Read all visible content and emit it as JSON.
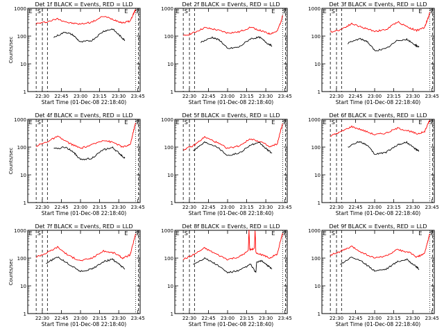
{
  "chart_data": [
    {
      "type": "line",
      "title": "Det 1f BLACK = Events, RED = LLD",
      "ylabel": "Counts/sec",
      "xlabel": "Start Time (01-Dec-08 22:18:40)",
      "x_ticks": [
        "22:30",
        "22:45",
        "23:00",
        "23:15",
        "23:30",
        "23:45"
      ],
      "y_ticks": [
        "1",
        "10",
        "100",
        "1000"
      ],
      "ylim": [
        1,
        1000
      ],
      "yscale": "log",
      "markers": [
        "E",
        "S",
        "E",
        "S"
      ],
      "series": [
        {
          "color": "#ff0000",
          "values": [
            [
              22.42,
              280
            ],
            [
              22.55,
              320
            ],
            [
              22.7,
              420
            ],
            [
              22.85,
              300
            ],
            [
              23.0,
              270
            ],
            [
              23.15,
              320
            ],
            [
              23.3,
              520
            ],
            [
              23.45,
              380
            ],
            [
              23.55,
              300
            ],
            [
              23.65,
              350
            ],
            [
              23.7,
              700
            ],
            [
              23.72,
              900
            ]
          ]
        },
        {
          "color": "#000000",
          "values": [
            [
              22.65,
              90
            ],
            [
              22.8,
              140
            ],
            [
              22.9,
              110
            ],
            [
              23.0,
              60
            ],
            [
              23.15,
              70
            ],
            [
              23.3,
              150
            ],
            [
              23.42,
              180
            ],
            [
              23.52,
              100
            ],
            [
              23.58,
              70
            ]
          ]
        }
      ]
    },
    {
      "type": "line",
      "title": "Det 2f BLACK = Events, RED = LLD",
      "ylabel": "",
      "xlabel": "Start Time (01-Dec-08 22:18:40)",
      "x_ticks": [
        "22:30",
        "22:45",
        "23:00",
        "23:15",
        "23:30",
        "23:45"
      ],
      "y_ticks": [
        "1",
        "10",
        "100",
        "1000"
      ],
      "ylim": [
        1,
        1000
      ],
      "yscale": "log",
      "markers": [
        "E",
        "S",
        "E",
        "S"
      ],
      "series": [
        {
          "color": "#ff0000",
          "values": [
            [
              22.42,
              100
            ],
            [
              22.55,
              130
            ],
            [
              22.7,
              200
            ],
            [
              22.85,
              170
            ],
            [
              23.0,
              130
            ],
            [
              23.15,
              140
            ],
            [
              23.3,
              210
            ],
            [
              23.45,
              150
            ],
            [
              23.55,
              120
            ],
            [
              23.65,
              150
            ],
            [
              23.7,
              350
            ],
            [
              23.72,
              550
            ]
          ]
        },
        {
          "color": "#000000",
          "values": [
            [
              22.65,
              60
            ],
            [
              22.8,
              90
            ],
            [
              22.9,
              70
            ],
            [
              23.0,
              35
            ],
            [
              23.15,
              40
            ],
            [
              23.3,
              80
            ],
            [
              23.42,
              90
            ],
            [
              23.52,
              55
            ],
            [
              23.58,
              45
            ]
          ]
        }
      ]
    },
    {
      "type": "line",
      "title": "Det 3f BLACK = Events, RED = LLD",
      "ylabel": "",
      "xlabel": "Start Time (01-Dec-08 22:18:40)",
      "x_ticks": [
        "22:30",
        "22:45",
        "23:00",
        "23:15",
        "23:30",
        "23:45"
      ],
      "y_ticks": [
        "1",
        "10",
        "100",
        "1000"
      ],
      "ylim": [
        1,
        1000
      ],
      "yscale": "log",
      "markers": [
        "E",
        "S",
        "E",
        "S"
      ],
      "series": [
        {
          "color": "#ff0000",
          "values": [
            [
              22.42,
              140
            ],
            [
              22.55,
              170
            ],
            [
              22.7,
              280
            ],
            [
              22.85,
              200
            ],
            [
              23.0,
              150
            ],
            [
              23.15,
              170
            ],
            [
              23.3,
              330
            ],
            [
              23.45,
              200
            ],
            [
              23.55,
              160
            ],
            [
              23.65,
              200
            ],
            [
              23.7,
              450
            ],
            [
              23.72,
              700
            ]
          ]
        },
        {
          "color": "#000000",
          "values": [
            [
              22.65,
              55
            ],
            [
              22.8,
              80
            ],
            [
              22.9,
              65
            ],
            [
              23.0,
              30
            ],
            [
              23.15,
              35
            ],
            [
              23.3,
              70
            ],
            [
              23.42,
              75
            ],
            [
              23.52,
              50
            ],
            [
              23.58,
              40
            ]
          ]
        }
      ]
    },
    {
      "type": "line",
      "title": "Det 4f BLACK = Events, RED = LLD",
      "ylabel": "Counts/sec",
      "xlabel": "Start Time (01-Dec-08 22:18:40)",
      "x_ticks": [
        "22:30",
        "22:45",
        "23:00",
        "23:15",
        "23:30",
        "23:45"
      ],
      "y_ticks": [
        "1",
        "10",
        "100",
        "1000"
      ],
      "ylim": [
        1,
        1000
      ],
      "yscale": "log",
      "markers": [
        "E",
        "S",
        "E",
        "S"
      ],
      "series": [
        {
          "color": "#ff0000",
          "values": [
            [
              22.42,
              110
            ],
            [
              22.55,
              150
            ],
            [
              22.7,
              240
            ],
            [
              22.85,
              140
            ],
            [
              23.0,
              90
            ],
            [
              23.15,
              120
            ],
            [
              23.3,
              180
            ],
            [
              23.45,
              140
            ],
            [
              23.55,
              100
            ],
            [
              23.65,
              120
            ],
            [
              23.7,
              450
            ],
            [
              23.72,
              750
            ]
          ]
        },
        {
          "color": "#000000",
          "values": [
            [
              22.65,
              85
            ],
            [
              22.8,
              100
            ],
            [
              22.9,
              70
            ],
            [
              23.0,
              35
            ],
            [
              23.15,
              40
            ],
            [
              23.3,
              80
            ],
            [
              23.42,
              95
            ],
            [
              23.52,
              55
            ],
            [
              23.58,
              40
            ]
          ]
        }
      ]
    },
    {
      "type": "line",
      "title": "Det 5f BLACK = Events, RED = LLD",
      "ylabel": "",
      "xlabel": "Start Time (01-Dec-08 22:18:40)",
      "x_ticks": [
        "22:30",
        "22:45",
        "23:00",
        "23:15",
        "23:30",
        "23:45"
      ],
      "y_ticks": [
        "1",
        "10",
        "100",
        "1000"
      ],
      "ylim": [
        1,
        1000
      ],
      "yscale": "log",
      "markers": [
        "E",
        "S",
        "E",
        "S"
      ],
      "series": [
        {
          "color": "#ff0000",
          "values": [
            [
              22.42,
              80
            ],
            [
              22.55,
              110
            ],
            [
              22.7,
              230
            ],
            [
              22.85,
              150
            ],
            [
              23.0,
              90
            ],
            [
              23.15,
              110
            ],
            [
              23.3,
              200
            ],
            [
              23.45,
              150
            ],
            [
              23.55,
              100
            ],
            [
              23.65,
              130
            ],
            [
              23.7,
              450
            ],
            [
              23.72,
              700
            ]
          ]
        },
        {
          "color": "#000000",
          "values": [
            [
              22.55,
              75
            ],
            [
              22.7,
              150
            ],
            [
              22.85,
              110
            ],
            [
              23.0,
              50
            ],
            [
              23.15,
              60
            ],
            [
              23.3,
              120
            ],
            [
              23.42,
              140
            ],
            [
              23.52,
              80
            ],
            [
              23.58,
              60
            ]
          ]
        }
      ]
    },
    {
      "type": "line",
      "title": "Det 6f BLACK = Events, RED = LLD",
      "ylabel": "",
      "xlabel": "Start Time (01-Dec-08 22:18:40)",
      "x_ticks": [
        "22:30",
        "22:45",
        "23:00",
        "23:15",
        "23:30",
        "23:45"
      ],
      "y_ticks": [
        "1",
        "10",
        "100",
        "1000"
      ],
      "ylim": [
        1,
        1000
      ],
      "yscale": "log",
      "markers": [
        "E",
        "S",
        "E",
        "S"
      ],
      "series": [
        {
          "color": "#ff0000",
          "values": [
            [
              22.42,
              250
            ],
            [
              22.55,
              350
            ],
            [
              22.7,
              550
            ],
            [
              22.85,
              400
            ],
            [
              23.0,
              280
            ],
            [
              23.15,
              320
            ],
            [
              23.3,
              480
            ],
            [
              23.45,
              380
            ],
            [
              23.55,
              300
            ],
            [
              23.65,
              350
            ],
            [
              23.7,
              700
            ],
            [
              23.72,
              950
            ]
          ]
        },
        {
          "color": "#000000",
          "values": [
            [
              22.65,
              100
            ],
            [
              22.8,
              160
            ],
            [
              22.9,
              120
            ],
            [
              23.0,
              55
            ],
            [
              23.15,
              65
            ],
            [
              23.3,
              120
            ],
            [
              23.42,
              150
            ],
            [
              23.52,
              90
            ],
            [
              23.58,
              70
            ]
          ]
        }
      ]
    },
    {
      "type": "line",
      "title": "Det 7f BLACK = Events, RED = LLD",
      "ylabel": "Counts/sec",
      "xlabel": "Start Time (01-Dec-08 22:18:40)",
      "x_ticks": [
        "22:30",
        "22:45",
        "23:00",
        "23:15",
        "23:30",
        "23:45"
      ],
      "y_ticks": [
        "1",
        "10",
        "100",
        "1000"
      ],
      "ylim": [
        1,
        1000
      ],
      "yscale": "log",
      "markers": [
        "E",
        "S",
        "E",
        "S"
      ],
      "series": [
        {
          "color": "#ff0000",
          "values": [
            [
              22.42,
              110
            ],
            [
              22.55,
              150
            ],
            [
              22.7,
              250
            ],
            [
              22.85,
              120
            ],
            [
              23.0,
              80
            ],
            [
              23.15,
              100
            ],
            [
              23.3,
              180
            ],
            [
              23.45,
              150
            ],
            [
              23.55,
              100
            ],
            [
              23.65,
              130
            ],
            [
              23.7,
              450
            ],
            [
              23.72,
              750
            ]
          ]
        },
        {
          "color": "#000000",
          "values": [
            [
              22.55,
              65
            ],
            [
              22.7,
              110
            ],
            [
              22.85,
              60
            ],
            [
              23.0,
              33
            ],
            [
              23.15,
              40
            ],
            [
              23.3,
              75
            ],
            [
              23.42,
              90
            ],
            [
              23.52,
              55
            ],
            [
              23.58,
              40
            ]
          ]
        }
      ]
    },
    {
      "type": "line",
      "title": "Det 8f BLACK = Events, RED = LLD",
      "ylabel": "",
      "xlabel": "Start Time (01-Dec-08 22:18:40)",
      "x_ticks": [
        "22:30",
        "22:45",
        "23:00",
        "23:15",
        "23:30",
        "23:45"
      ],
      "y_ticks": [
        "1",
        "10",
        "100",
        "1000"
      ],
      "ylim": [
        1,
        1000
      ],
      "yscale": "log",
      "markers": [
        "E",
        "S",
        "E",
        "S"
      ],
      "series": [
        {
          "color": "#ff0000",
          "values": [
            [
              22.42,
              90
            ],
            [
              22.55,
              130
            ],
            [
              22.7,
              230
            ],
            [
              22.85,
              140
            ],
            [
              23.0,
              90
            ],
            [
              23.15,
              110
            ],
            [
              23.27,
              180
            ],
            [
              23.28,
              1000
            ],
            [
              23.29,
              200
            ],
            [
              23.35,
              220
            ],
            [
              23.36,
              1000
            ],
            [
              23.37,
              160
            ],
            [
              23.45,
              130
            ],
            [
              23.55,
              100
            ],
            [
              23.65,
              140
            ],
            [
              23.7,
              500
            ],
            [
              23.72,
              800
            ]
          ]
        },
        {
          "color": "#000000",
          "values": [
            [
              22.55,
              60
            ],
            [
              22.7,
              100
            ],
            [
              22.85,
              60
            ],
            [
              23.0,
              30
            ],
            [
              23.15,
              35
            ],
            [
              23.3,
              60
            ],
            [
              23.37,
              30
            ],
            [
              23.38,
              70
            ],
            [
              23.45,
              80
            ],
            [
              23.52,
              55
            ],
            [
              23.58,
              40
            ]
          ]
        }
      ]
    },
    {
      "type": "line",
      "title": "Det 9f BLACK = Events, RED = LLD",
      "ylabel": "",
      "xlabel": "Start Time (01-Dec-08 22:18:40)",
      "x_ticks": [
        "22:30",
        "22:45",
        "23:00",
        "23:15",
        "23:30",
        "23:45"
      ],
      "y_ticks": [
        "1",
        "10",
        "100",
        "1000"
      ],
      "ylim": [
        1,
        1000
      ],
      "yscale": "log",
      "markers": [
        "E",
        "S",
        "E",
        "S"
      ],
      "series": [
        {
          "color": "#ff0000",
          "values": [
            [
              22.42,
              130
            ],
            [
              22.55,
              170
            ],
            [
              22.7,
              260
            ],
            [
              22.85,
              150
            ],
            [
              23.0,
              100
            ],
            [
              23.15,
              120
            ],
            [
              23.3,
              200
            ],
            [
              23.45,
              160
            ],
            [
              23.55,
              110
            ],
            [
              23.65,
              140
            ],
            [
              23.7,
              450
            ],
            [
              23.72,
              750
            ]
          ]
        },
        {
          "color": "#000000",
          "values": [
            [
              22.55,
              60
            ],
            [
              22.7,
              110
            ],
            [
              22.85,
              70
            ],
            [
              23.0,
              35
            ],
            [
              23.15,
              40
            ],
            [
              23.3,
              75
            ],
            [
              23.42,
              90
            ],
            [
              23.52,
              55
            ],
            [
              23.58,
              40
            ]
          ]
        }
      ]
    }
  ]
}
